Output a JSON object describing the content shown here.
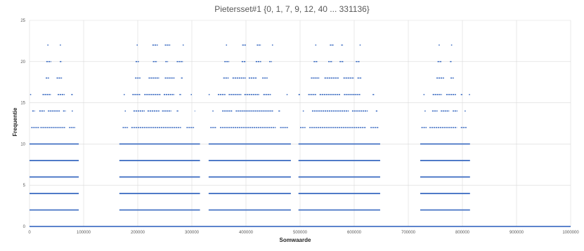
{
  "chart_data": {
    "type": "scatter",
    "title": "Pietersset#1 {0, 1, 7, 9, 12, 40 ... 331136}",
    "xlabel": "Somwaarde",
    "ylabel": "Frequentie",
    "xlim": [
      0,
      1000000
    ],
    "ylim": [
      0,
      25
    ],
    "x_ticks": [
      "0",
      "100000",
      "200000",
      "300000",
      "400000",
      "500000",
      "600000",
      "700000",
      "800000",
      "900000",
      "1000000"
    ],
    "y_ticks": [
      "0",
      "5",
      "10",
      "15",
      "20",
      "25"
    ],
    "grid": true,
    "legend": "none",
    "marker_color": "#4472C4",
    "series": [
      {
        "bands": [
          {
            "y": 0,
            "ranges": [
              [
                0,
                1000000
              ]
            ]
          },
          {
            "y": 2,
            "ranges": [
              [
                0,
                91000
              ],
              [
                166000,
                315000
              ],
              [
                331000,
                483000
              ],
              [
                497000,
                648000
              ],
              [
                722000,
                814000
              ]
            ]
          },
          {
            "y": 4,
            "ranges": [
              [
                0,
                91000
              ],
              [
                166000,
                315000
              ],
              [
                331000,
                483000
              ],
              [
                497000,
                648000
              ],
              [
                722000,
                814000
              ]
            ]
          },
          {
            "y": 6,
            "ranges": [
              [
                0,
                91000
              ],
              [
                166000,
                315000
              ],
              [
                331000,
                483000
              ],
              [
                497000,
                648000
              ],
              [
                722000,
                814000
              ]
            ]
          },
          {
            "y": 8,
            "ranges": [
              [
                0,
                91000
              ],
              [
                166000,
                315000
              ],
              [
                331000,
                483000
              ],
              [
                497000,
                648000
              ],
              [
                722000,
                814000
              ]
            ]
          },
          {
            "y": 10,
            "ranges": [
              [
                0,
                91000
              ],
              [
                166000,
                315000
              ],
              [
                331000,
                483000
              ],
              [
                497000,
                648000
              ],
              [
                722000,
                814000
              ]
            ]
          },
          {
            "y": 12,
            "ranges": [
              [
                3000,
                18000
              ],
              [
                20000,
                66000
              ],
              [
                73000,
                85000
              ],
              [
                172000,
                182000
              ],
              [
                188000,
                280000
              ],
              [
                290000,
                304000
              ],
              [
                334000,
                345000
              ],
              [
                352000,
                455000
              ],
              [
                463000,
                478000
              ],
              [
                500000,
                510000
              ],
              [
                517000,
                622000
              ],
              [
                630000,
                645000
              ],
              [
                724000,
                734000
              ],
              [
                739000,
                790000
              ],
              [
                797000,
                808000
              ]
            ]
          },
          {
            "y": 14,
            "ranges": [
              [
                5000,
                10000
              ],
              [
                18000,
                28000
              ],
              [
                34000,
                56000
              ],
              [
                62000,
                67000
              ],
              [
                78000,
                80000
              ],
              [
                176000,
                178000
              ],
              [
                192000,
                213000
              ],
              [
                218000,
                240000
              ],
              [
                245000,
                262000
              ],
              [
                272000,
                276000
              ],
              [
                305000,
                306000
              ],
              [
                338000,
                340000
              ],
              [
                356000,
                375000
              ],
              [
                381000,
                450000
              ],
              [
                460000,
                463000
              ],
              [
                505000,
                507000
              ],
              [
                522000,
                590000
              ],
              [
                596000,
                625000
              ],
              [
                640000,
                643000
              ],
              [
                730000,
                732000
              ],
              [
                744000,
                754000
              ],
              [
                760000,
                776000
              ],
              [
                782000,
                791000
              ],
              [
                804000,
                806000
              ]
            ]
          },
          {
            "y": 16,
            "ranges": [
              [
                1000,
                3000
              ],
              [
                24000,
                40000
              ],
              [
                52000,
                65000
              ],
              [
                77000,
                80000
              ],
              [
                174000,
                176000
              ],
              [
                190000,
                205000
              ],
              [
                212000,
                242000
              ],
              [
                248000,
                268000
              ],
              [
                277000,
                281000
              ],
              [
                298000,
                300000
              ],
              [
                331000,
                333000
              ],
              [
                348000,
                362000
              ],
              [
                368000,
                392000
              ],
              [
                397000,
                425000
              ],
              [
                432000,
                446000
              ],
              [
                475000,
                477000
              ],
              [
                497000,
                500000
              ],
              [
                515000,
                530000
              ],
              [
                536000,
                575000
              ],
              [
                581000,
                612000
              ],
              [
                634000,
                637000
              ],
              [
                728000,
                730000
              ],
              [
                745000,
                762000
              ],
              [
                770000,
                788000
              ],
              [
                797000,
                800000
              ],
              [
                812000,
                814000
              ]
            ]
          },
          {
            "y": 18,
            "ranges": [
              [
                30000,
                36000
              ],
              [
                50000,
                60000
              ],
              [
                195000,
                205000
              ],
              [
                220000,
                240000
              ],
              [
                250000,
                268000
              ],
              [
                280000,
                284000
              ],
              [
                358000,
                368000
              ],
              [
                375000,
                400000
              ],
              [
                405000,
                420000
              ],
              [
                430000,
                440000
              ],
              [
                520000,
                536000
              ],
              [
                545000,
                572000
              ],
              [
                580000,
                600000
              ],
              [
                606000,
                614000
              ],
              [
                752000,
                766000
              ],
              [
                778000,
                784000
              ]
            ]
          },
          {
            "y": 20,
            "ranges": [
              [
                31000,
                40000
              ],
              [
                56000,
                60000
              ],
              [
                196000,
                202000
              ],
              [
                228000,
                236000
              ],
              [
                251000,
                256000
              ],
              [
                272000,
                284000
              ],
              [
                360000,
                369000
              ],
              [
                392000,
                400000
              ],
              [
                418000,
                428000
              ],
              [
                443000,
                448000
              ],
              [
                525000,
                532000
              ],
              [
                552000,
                560000
              ],
              [
                573000,
                580000
              ],
              [
                603000,
                610000
              ],
              [
                754000,
                762000
              ],
              [
                777000,
                780000
              ]
            ]
          },
          {
            "y": 22,
            "ranges": [
              [
                33000,
                35000
              ],
              [
                56000,
                58000
              ],
              [
                198000,
                200000
              ],
              [
                227000,
                237000
              ],
              [
                250000,
                260000
              ],
              [
                283000,
                285000
              ],
              [
                363000,
                365000
              ],
              [
                393000,
                400000
              ],
              [
                420000,
                428000
              ],
              [
                448000,
                450000
              ],
              [
                528000,
                530000
              ],
              [
                555000,
                562000
              ],
              [
                576000,
                580000
              ],
              [
                610000,
                612000
              ],
              [
                756000,
                758000
              ],
              [
                779000,
                781000
              ]
            ]
          }
        ]
      }
    ]
  }
}
